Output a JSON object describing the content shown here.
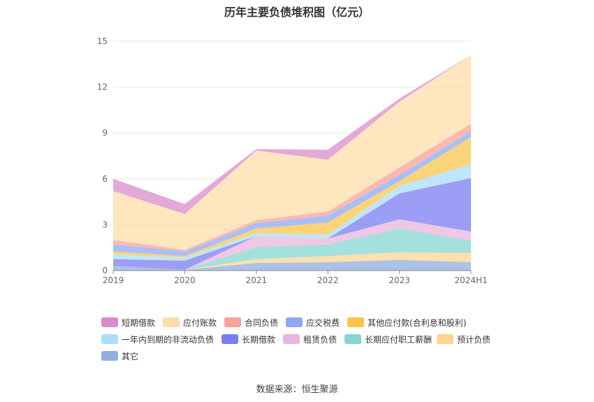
{
  "chart_data": {
    "type": "area",
    "stacked": true,
    "title": "历年主要负债堆积图（亿元）",
    "categories": [
      "2019",
      "2020",
      "2021",
      "2022",
      "2023",
      "2024H1"
    ],
    "y_ticks": [
      "0",
      "3",
      "6",
      "9",
      "12",
      "15"
    ],
    "ylim": [
      0,
      15
    ],
    "grid": true,
    "legend_position": "bottom",
    "series": [
      {
        "name": "短期借款",
        "values": [
          0.8,
          0.65,
          0.1,
          0.65,
          0.2,
          0.0
        ],
        "color": "#d98cc9"
      },
      {
        "name": "应付账款",
        "values": [
          3.2,
          2.35,
          4.55,
          3.4,
          4.3,
          4.5
        ],
        "color": "#fdddaa"
      },
      {
        "name": "合同负债",
        "values": [
          0.3,
          0.1,
          0.2,
          0.25,
          0.5,
          0.5
        ],
        "color": "#f7a29a"
      },
      {
        "name": "应交税费",
        "values": [
          0.45,
          0.3,
          0.35,
          0.45,
          0.4,
          0.35
        ],
        "color": "#8ea8f5"
      },
      {
        "name": "其他应付款(合利息和股利)",
        "values": [
          0.2,
          0.1,
          0.3,
          0.8,
          0.3,
          1.8
        ],
        "color": "#f8c54b"
      },
      {
        "name": "一年内到期的非流动负债",
        "values": [
          0.3,
          0.2,
          0.2,
          0.25,
          0.5,
          0.9
        ],
        "color": "#a9defa"
      },
      {
        "name": "长期借款",
        "values": [
          0.45,
          0.6,
          0.0,
          0.0,
          1.7,
          3.5
        ],
        "color": "#7a7ef0"
      },
      {
        "name": "租赁负债",
        "values": [
          0.0,
          0.0,
          0.7,
          0.4,
          0.6,
          0.6
        ],
        "color": "#e8b6dc"
      },
      {
        "name": "长期应付职工薪酬",
        "values": [
          0.0,
          0.0,
          0.8,
          0.75,
          1.55,
          0.8
        ],
        "color": "#85d6d1"
      },
      {
        "name": "预计负债",
        "values": [
          0.0,
          0.0,
          0.25,
          0.4,
          0.5,
          0.6
        ],
        "color": "#fdd590"
      },
      {
        "name": "其它",
        "values": [
          0.3,
          0.05,
          0.5,
          0.55,
          0.7,
          0.55
        ],
        "color": "#90aee0"
      }
    ]
  },
  "source": "数据来源：恒生聚源"
}
